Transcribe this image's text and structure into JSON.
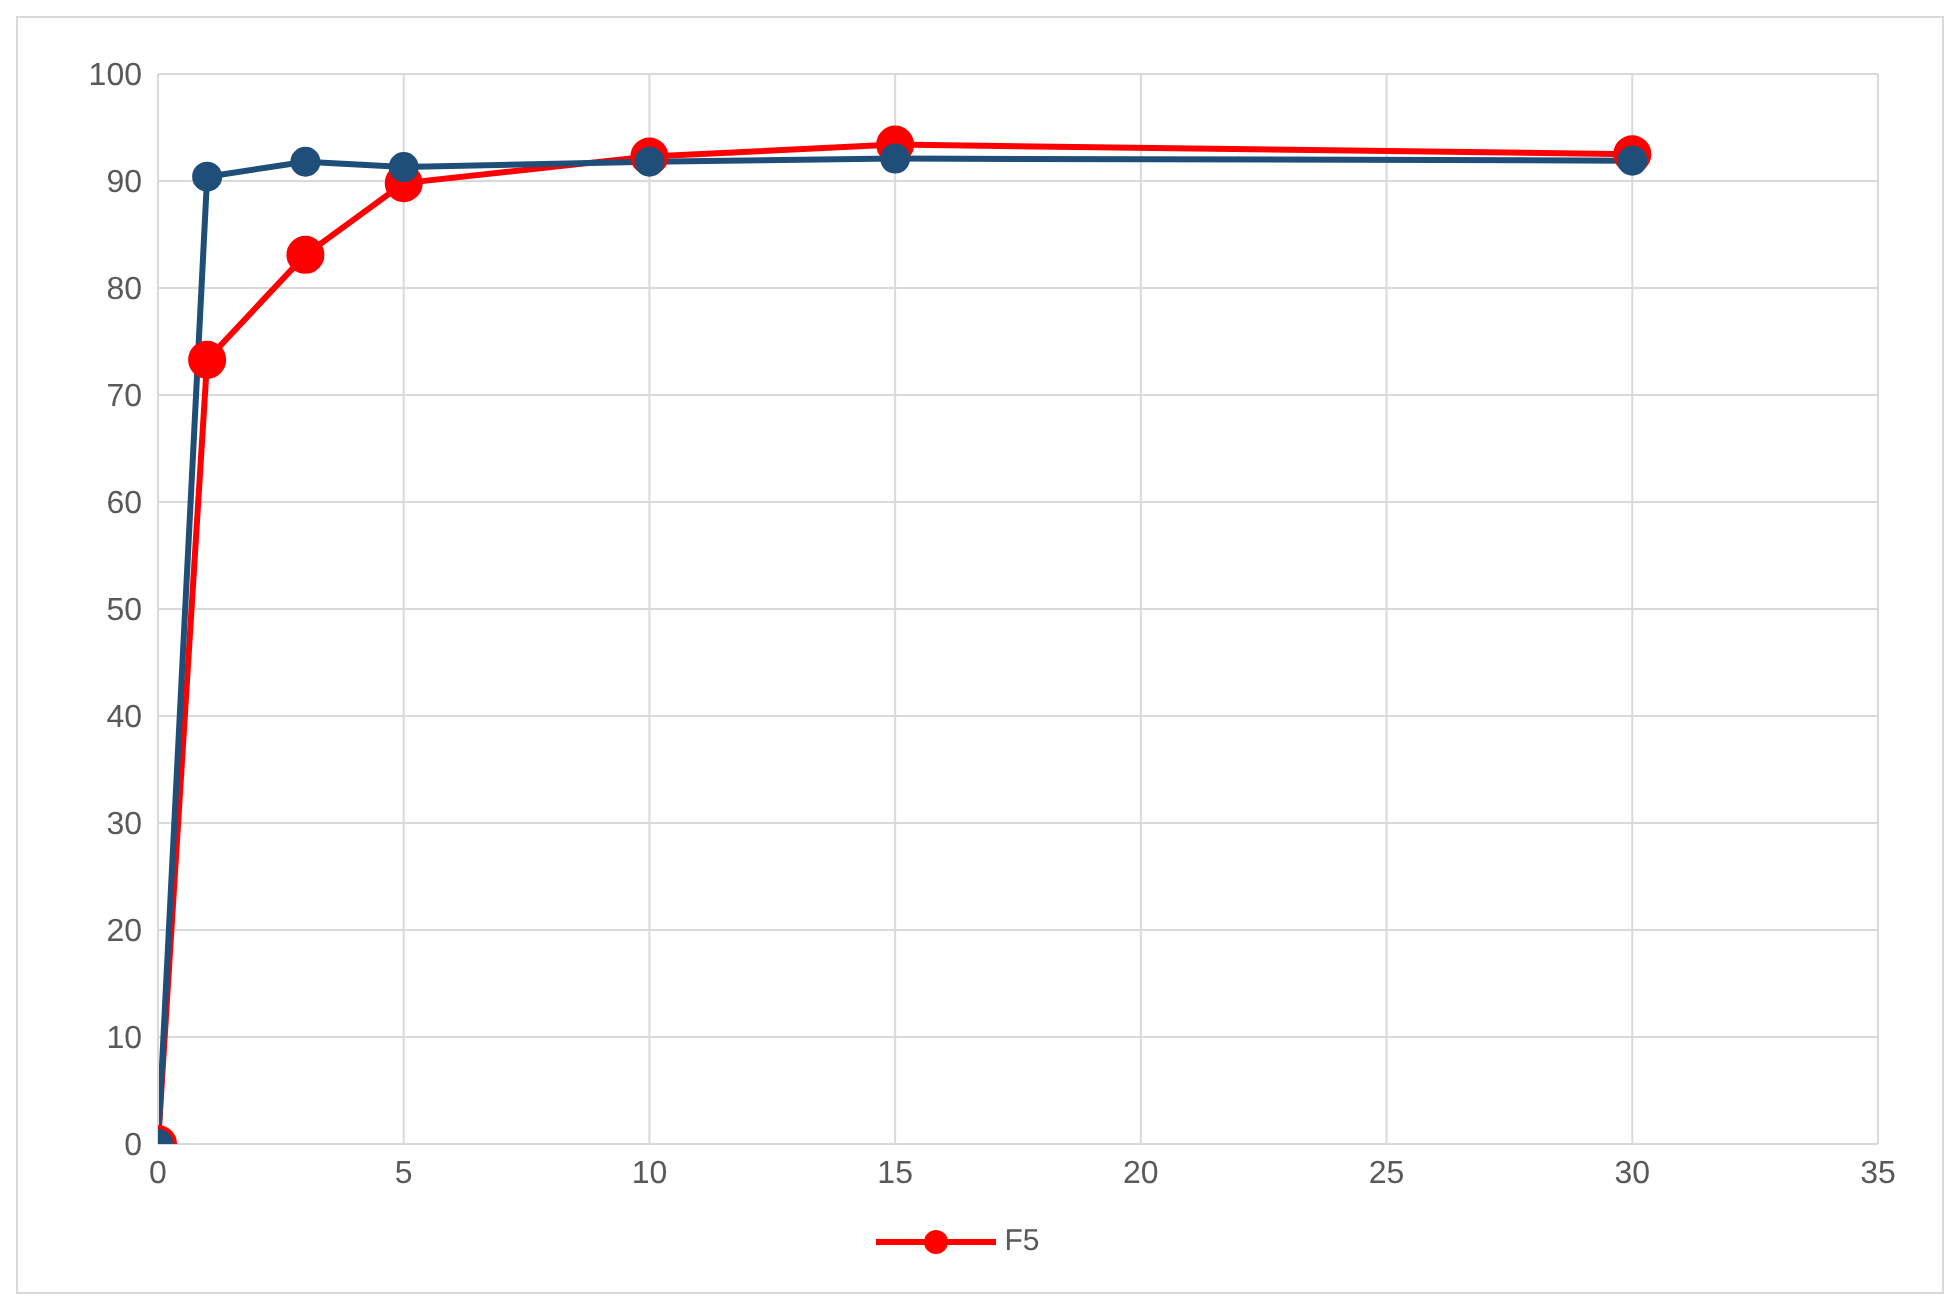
{
  "chart_data": {
    "type": "line",
    "x": [
      0,
      1,
      3,
      5,
      10,
      15,
      30
    ],
    "series": [
      {
        "name": "F5",
        "color": "#ff0000",
        "values": [
          0,
          73.3,
          83.1,
          89.8,
          92.3,
          93.4,
          92.5
        ]
      },
      {
        "color": "#1f4e79",
        "values": [
          0,
          90.4,
          91.8,
          91.3,
          91.8,
          92.1,
          91.9
        ]
      }
    ],
    "xlim": [
      0,
      35
    ],
    "xticks": [
      0,
      5,
      10,
      15,
      20,
      25,
      30,
      35
    ],
    "ylim": [
      0,
      100
    ],
    "yticks": [
      0,
      10,
      20,
      30,
      40,
      50,
      60,
      70,
      80,
      90,
      100
    ],
    "grid": true,
    "legend": "bottom",
    "marker": "circle",
    "line_style": "solid"
  }
}
